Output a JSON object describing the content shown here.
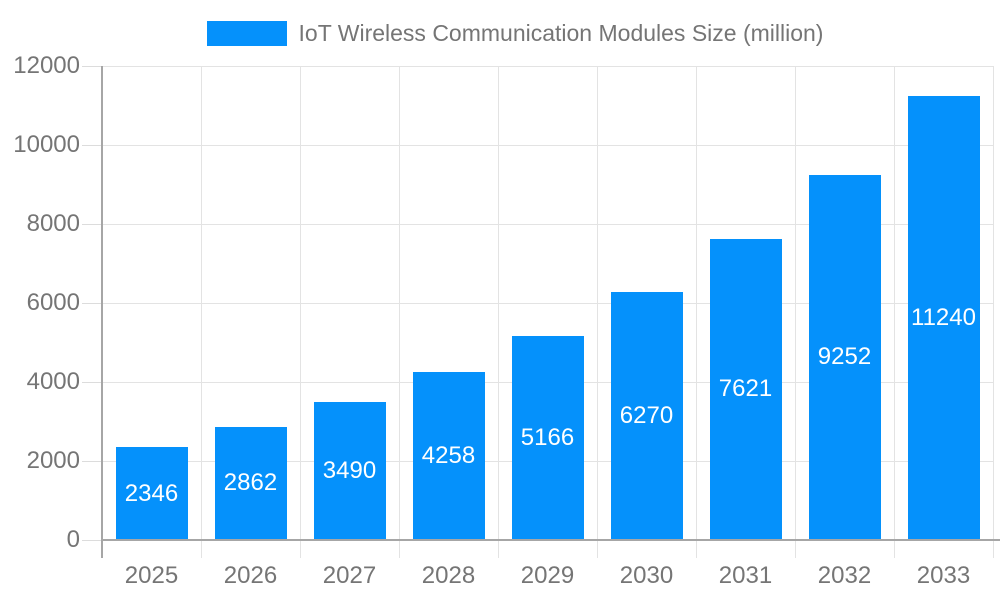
{
  "legend": {
    "label": "IoT Wireless Communication Modules Size (million)"
  },
  "chart_data": {
    "type": "bar",
    "title": "IoT Wireless Communication Modules Size (million)",
    "categories": [
      "2025",
      "2026",
      "2027",
      "2028",
      "2029",
      "2030",
      "2031",
      "2032",
      "2033"
    ],
    "values": [
      2346,
      2862,
      3490,
      4258,
      5166,
      6270,
      7621,
      9252,
      11240
    ],
    "xlabel": "",
    "ylabel": "",
    "ylim": [
      0,
      12000
    ],
    "yticks": [
      0,
      2000,
      4000,
      6000,
      8000,
      10000,
      12000
    ],
    "grid": true,
    "legend_position": "top-center",
    "value_labels": "inside-center",
    "colors": {
      "bar": "#0591fb",
      "value_label": "#ffffff",
      "axis_text": "#757575",
      "gridline": "#e3e3e3",
      "axis_line": "#a6a6a6"
    }
  }
}
